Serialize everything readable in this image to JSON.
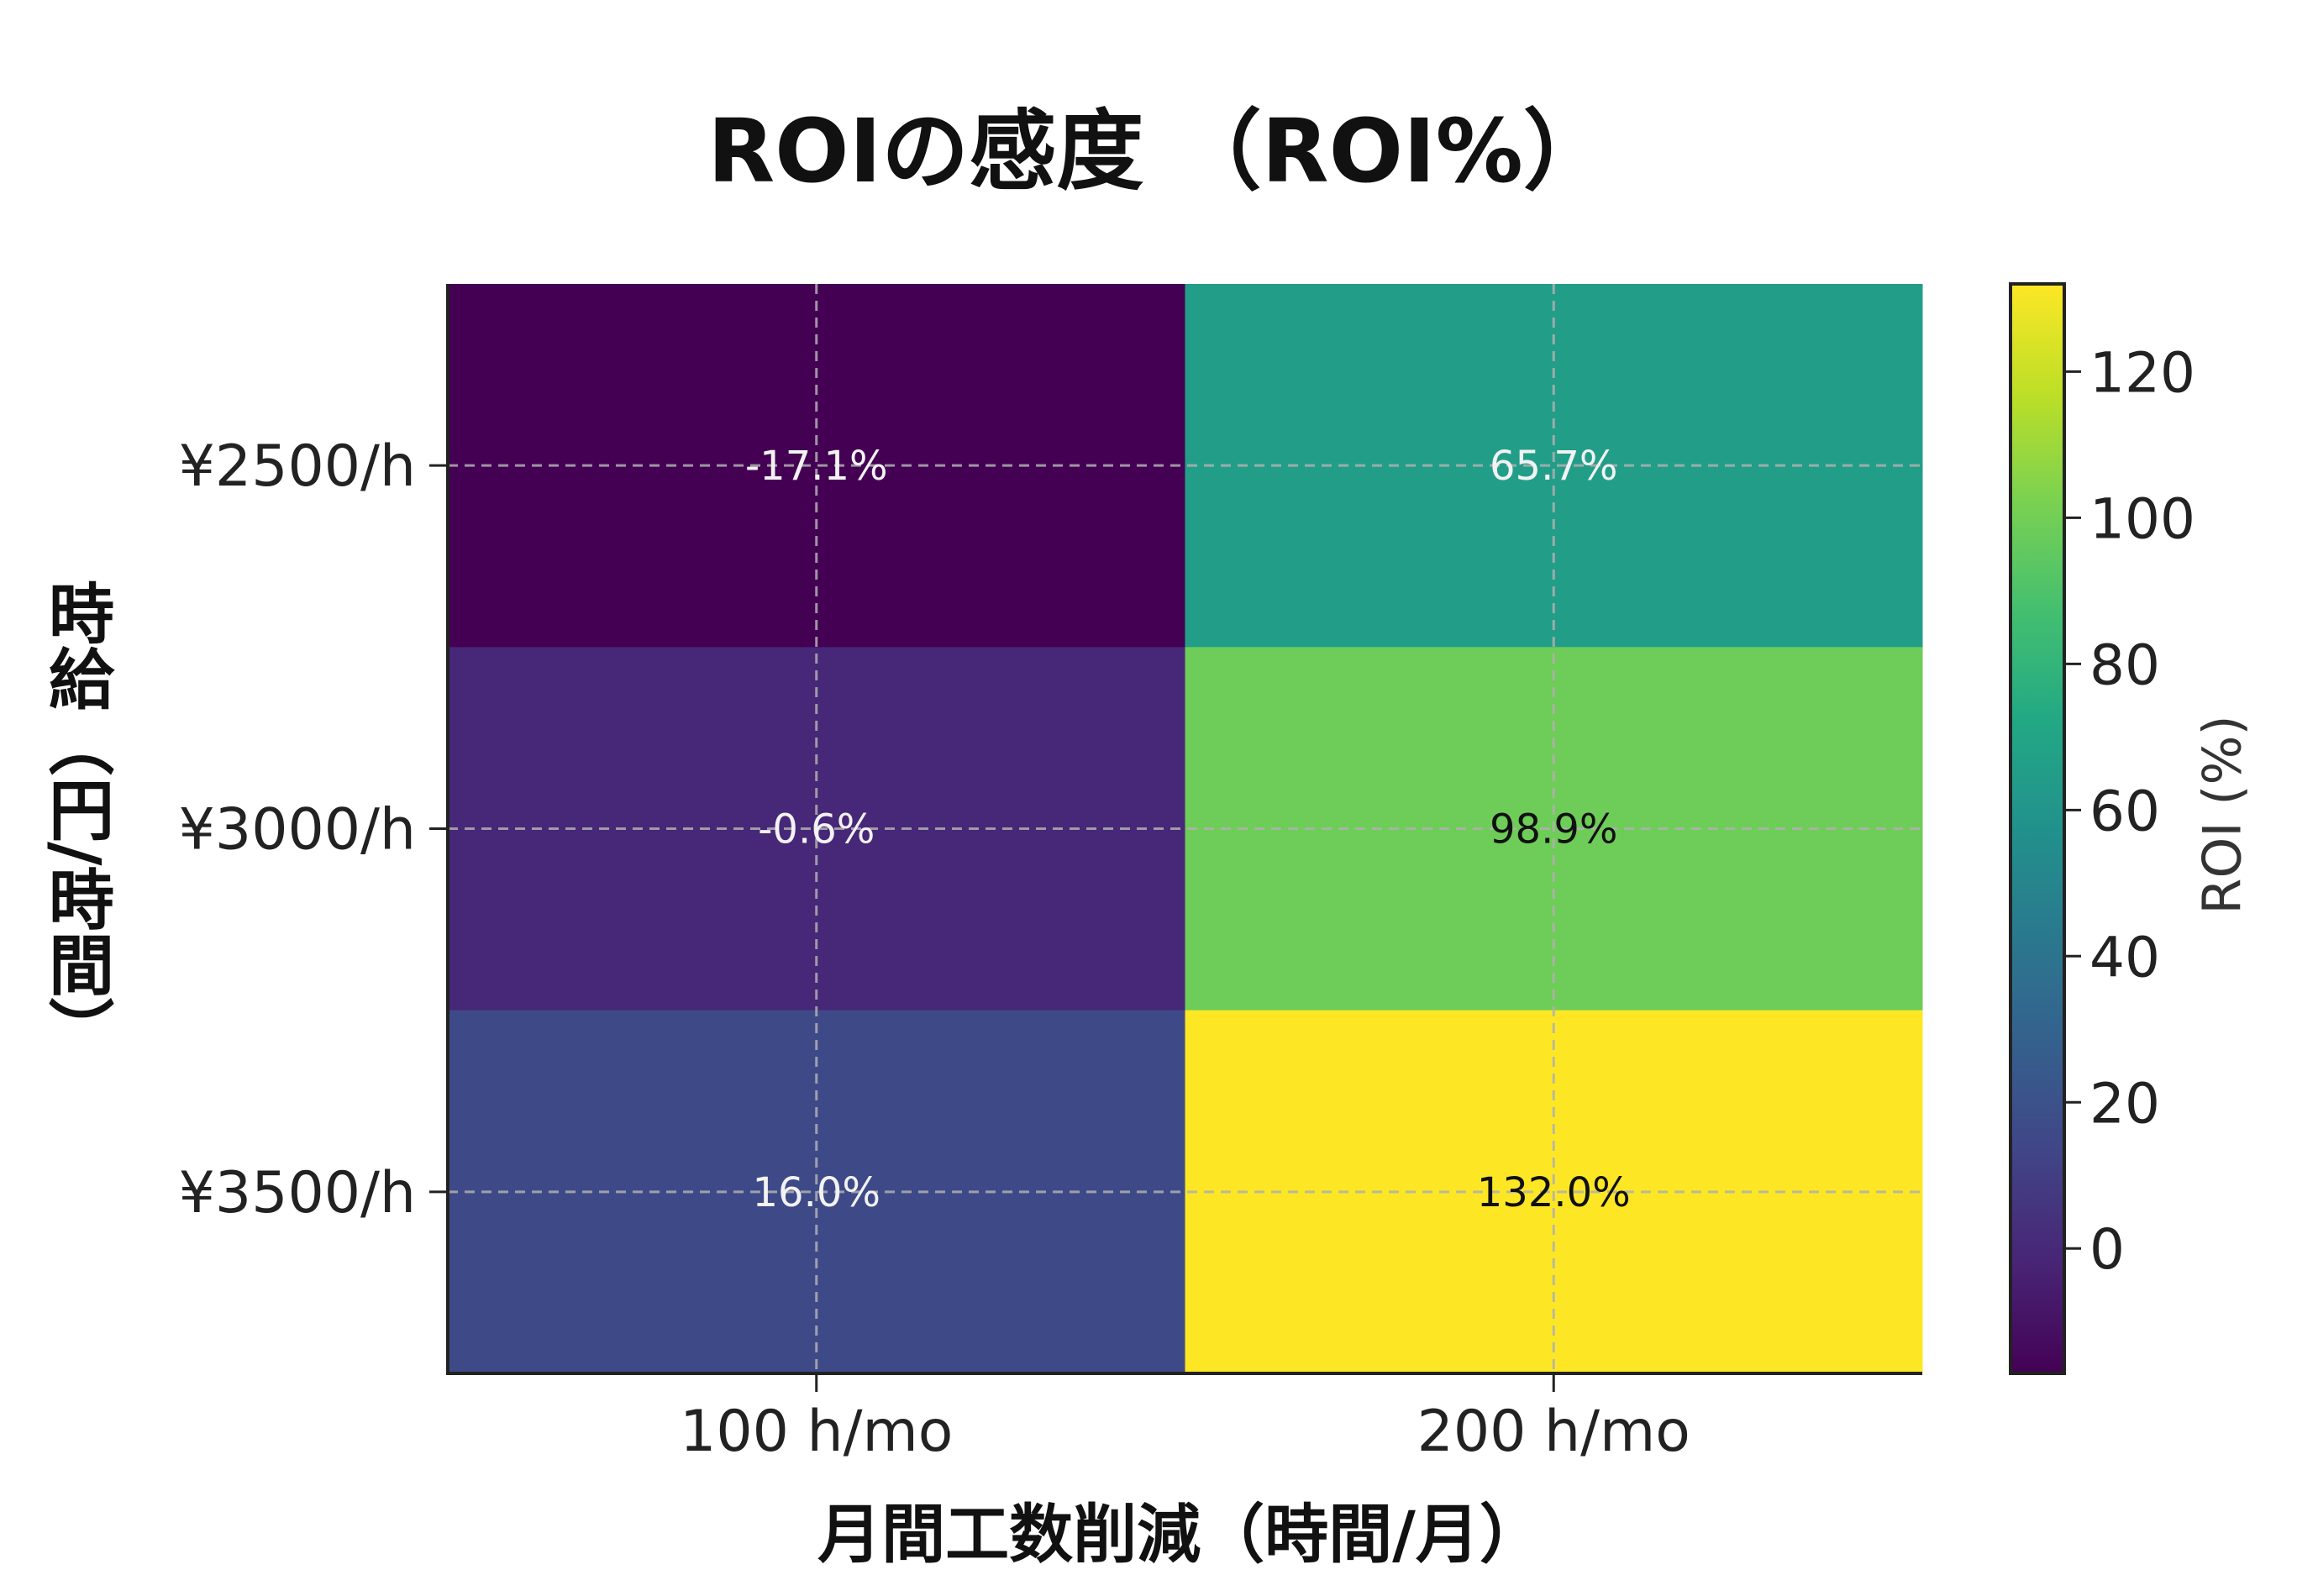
{
  "chart_data": {
    "type": "heatmap",
    "title": "ROIの感度 （ROI%）",
    "xlabel": "月間工数削減（時間/月）",
    "ylabel": "時給（円/時間）",
    "x_categories": [
      "100 h/mo",
      "200 h/mo"
    ],
    "y_categories": [
      "¥2500/h",
      "¥3000/h",
      "¥3500/h"
    ],
    "values": [
      [
        -17.1,
        65.7
      ],
      [
        -0.6,
        98.9
      ],
      [
        16.0,
        132.0
      ]
    ],
    "cell_labels": [
      [
        "-17.1%",
        "65.7%"
      ],
      [
        "-0.6%",
        "98.9%"
      ],
      [
        "16.0%",
        "132.0%"
      ]
    ],
    "colorbar": {
      "label": "ROI (%)",
      "range": [
        -17.1,
        132.0
      ],
      "ticks": [
        0,
        20,
        40,
        60,
        80,
        100,
        120
      ],
      "colormap": "viridis"
    },
    "grid": true
  }
}
